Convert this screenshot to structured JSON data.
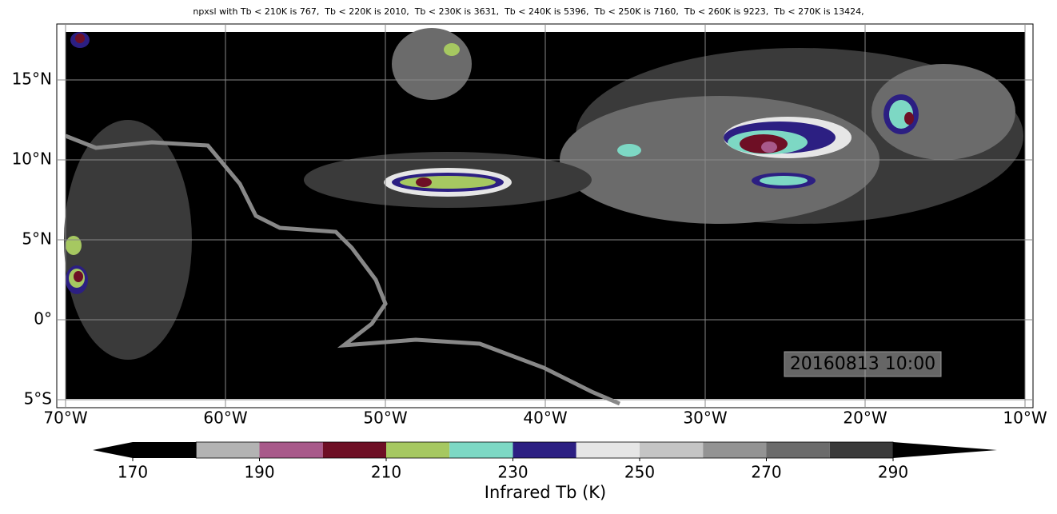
{
  "title": "npxsl with Tb < 210K is 767,  Tb < 220K is 2010,  Tb < 230K is 3631,  Tb < 240K is 5396,  Tb < 250K is 7160,  Tb < 260K is 9223,  Tb < 270K is 13424,",
  "map": {
    "lonlim": [
      -70.55,
      -9.5
    ],
    "latlim": [
      -5.5,
      18.5
    ],
    "lon_ticks": [
      {
        "value": -70,
        "label": "70°W"
      },
      {
        "value": -60,
        "label": "60°W"
      },
      {
        "value": -50,
        "label": "50°W"
      },
      {
        "value": -40,
        "label": "40°W"
      },
      {
        "value": -30,
        "label": "30°W"
      },
      {
        "value": -20,
        "label": "20°W"
      },
      {
        "value": -10,
        "label": "10°W"
      }
    ],
    "lat_ticks": [
      {
        "value": 15,
        "label": "15°N"
      },
      {
        "value": 10,
        "label": "10°N"
      },
      {
        "value": 5,
        "label": "5°N"
      },
      {
        "value": 0,
        "label": "0°"
      },
      {
        "value": -5,
        "label": "5°S"
      }
    ],
    "timestamp": "20160813 10:00"
  },
  "colorbar": {
    "label": "Infrared Tb (K)",
    "bounds": [
      170,
      180,
      190,
      200,
      210,
      220,
      230,
      240,
      250,
      260,
      270,
      280,
      290
    ],
    "colors": [
      "#000000",
      "#b3b3b3",
      "#a8598a",
      "#6e0f25",
      "#a6c861",
      "#7dd8c4",
      "#2c1f82",
      "#e6e6e6",
      "#c4c4c4",
      "#939393",
      "#6b6b6b",
      "#3a3a3a"
    ],
    "ticks": [
      170,
      190,
      210,
      230,
      250,
      270,
      290
    ]
  }
}
